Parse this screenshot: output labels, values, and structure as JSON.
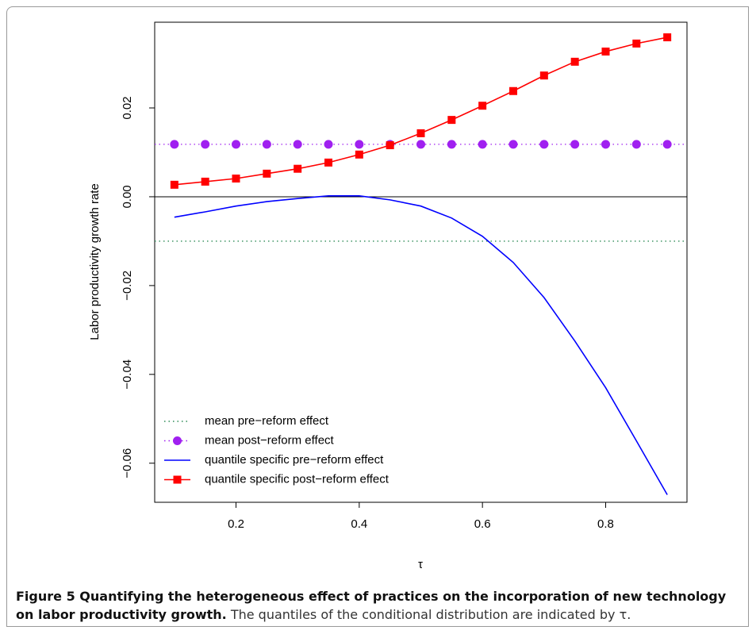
{
  "chart_data": {
    "type": "line",
    "x": [
      0.1,
      0.15,
      0.2,
      0.25,
      0.3,
      0.35,
      0.4,
      0.45,
      0.5,
      0.55,
      0.6,
      0.65,
      0.7,
      0.75,
      0.8,
      0.85,
      0.9
    ],
    "xlabel": "τ",
    "ylabel": "Labor productivity growth rate",
    "xlim": [
      0.068,
      0.932
    ],
    "ylim": [
      -0.0688,
      0.0393
    ],
    "xticks": [
      0.2,
      0.4,
      0.6,
      0.8
    ],
    "yticks": [
      {
        "value": -0.06,
        "label": "−0.06"
      },
      {
        "value": -0.04,
        "label": "−0.04"
      },
      {
        "value": -0.02,
        "label": "−0.02"
      },
      {
        "value": 0,
        "label": "0.00"
      },
      0.02
    ],
    "hline": 0,
    "legend": "bottom-left",
    "series": [
      {
        "name": "mean pre−reform effect",
        "color": "#2e8b57",
        "line": "dotted",
        "value": -0.01
      },
      {
        "name": "mean post−reform effect",
        "color": "#a020f0",
        "line": "dotted",
        "marker": "circle",
        "value": 0.0118
      },
      {
        "name": "quantile specific pre−reform effect",
        "color": "#0000ff",
        "line": "solid",
        "values": [
          -0.0046,
          -0.0034,
          -0.0021,
          -0.0011,
          -0.0004,
          0.0002,
          0.0002,
          -0.0007,
          -0.0021,
          -0.0048,
          -0.0089,
          -0.0148,
          -0.0227,
          -0.0325,
          -0.043,
          -0.055,
          -0.0671
        ]
      },
      {
        "name": "quantile specific post−reform effect",
        "color": "#ff0000",
        "line": "solid",
        "marker": "square",
        "values": [
          0.0027,
          0.0034,
          0.0041,
          0.0052,
          0.0063,
          0.0077,
          0.0095,
          0.0116,
          0.0143,
          0.0173,
          0.0205,
          0.0238,
          0.0273,
          0.0304,
          0.0327,
          0.0345,
          0.0359
        ]
      }
    ]
  },
  "caption": {
    "title": "Figure 5 Quantifying the heterogeneous effect of practices on the incorporation of new technology on labor productivity growth.",
    "text": "The quantiles of the conditional distribution are indicated by τ."
  }
}
